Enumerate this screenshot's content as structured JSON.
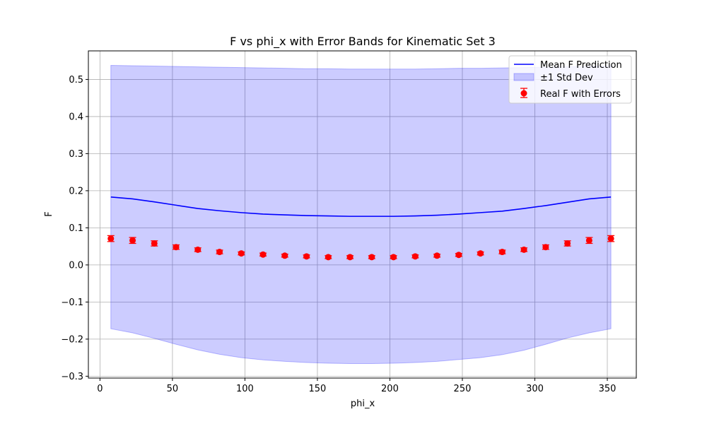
{
  "chart_data": {
    "type": "line",
    "title": "F vs phi_x with Error Bands for Kinematic Set 3",
    "xlabel": "phi_x",
    "ylabel": "F",
    "xlim": [
      -8,
      370
    ],
    "ylim": [
      -0.305,
      0.577
    ],
    "xticks": [
      0,
      50,
      100,
      150,
      200,
      250,
      300,
      350
    ],
    "yticks": [
      -0.3,
      -0.2,
      -0.1,
      0.0,
      0.1,
      0.2,
      0.3,
      0.4,
      0.5
    ],
    "ytick_labels": [
      "−0.3",
      "−0.2",
      "−0.1",
      "0.0",
      "0.1",
      "0.2",
      "0.3",
      "0.4",
      "0.5"
    ],
    "grid": true,
    "legend_position": "top-right",
    "x": [
      7.5,
      22.5,
      37.5,
      52.5,
      67.5,
      82.5,
      97.5,
      112.5,
      127.5,
      142.5,
      157.5,
      172.5,
      187.5,
      202.5,
      217.5,
      232.5,
      247.5,
      262.5,
      277.5,
      292.5,
      307.5,
      322.5,
      337.5,
      352.5
    ],
    "series": [
      {
        "name": "Mean F Prediction",
        "kind": "line",
        "color": "#0000ff",
        "values": [
          0.183,
          0.178,
          0.17,
          0.161,
          0.152,
          0.146,
          0.141,
          0.137,
          0.135,
          0.133,
          0.132,
          0.131,
          0.131,
          0.131,
          0.132,
          0.134,
          0.137,
          0.141,
          0.145,
          0.152,
          0.16,
          0.169,
          0.178,
          0.183
        ]
      },
      {
        "name": "±1 Std Dev",
        "kind": "band",
        "color": "#0000ff",
        "upper": [
          0.538,
          0.537,
          0.536,
          0.535,
          0.534,
          0.533,
          0.532,
          0.531,
          0.53,
          0.529,
          0.529,
          0.528,
          0.528,
          0.528,
          0.528,
          0.529,
          0.53,
          0.53,
          0.531,
          0.532,
          0.533,
          0.534,
          0.535,
          0.536
        ],
        "lower": [
          -0.172,
          -0.183,
          -0.198,
          -0.214,
          -0.229,
          -0.241,
          -0.25,
          -0.256,
          -0.26,
          -0.263,
          -0.265,
          -0.266,
          -0.266,
          -0.265,
          -0.263,
          -0.26,
          -0.255,
          -0.25,
          -0.242,
          -0.23,
          -0.214,
          -0.197,
          -0.183,
          -0.172
        ]
      },
      {
        "name": "Real F with Errors",
        "kind": "errorbar",
        "color": "#ff0000",
        "values": [
          0.071,
          0.066,
          0.058,
          0.048,
          0.041,
          0.035,
          0.031,
          0.028,
          0.025,
          0.023,
          0.021,
          0.021,
          0.021,
          0.021,
          0.023,
          0.025,
          0.027,
          0.031,
          0.035,
          0.041,
          0.048,
          0.058,
          0.066,
          0.071
        ],
        "errors": [
          0.008,
          0.008,
          0.007,
          0.006,
          0.005,
          0.005,
          0.004,
          0.004,
          0.004,
          0.004,
          0.004,
          0.004,
          0.004,
          0.004,
          0.004,
          0.004,
          0.004,
          0.004,
          0.005,
          0.005,
          0.006,
          0.007,
          0.008,
          0.008
        ]
      }
    ]
  }
}
